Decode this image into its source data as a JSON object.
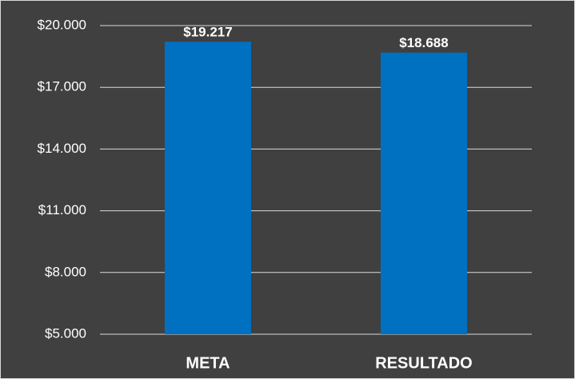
{
  "chart_data": {
    "type": "bar",
    "categories": [
      "META",
      "RESULTADO"
    ],
    "values": [
      19217,
      18688
    ],
    "value_labels": [
      "$19.217",
      "$18.688"
    ],
    "color": "#0070c0",
    "ylim": [
      5000,
      20000
    ],
    "yticks": [
      {
        "value": 5000,
        "label": "$5.000"
      },
      {
        "value": 8000,
        "label": "$8.000"
      },
      {
        "value": 11000,
        "label": "$11.000"
      },
      {
        "value": 14000,
        "label": "$14.000"
      },
      {
        "value": 17000,
        "label": "$17.000"
      },
      {
        "value": 20000,
        "label": "$20.000"
      }
    ],
    "grid": true
  }
}
